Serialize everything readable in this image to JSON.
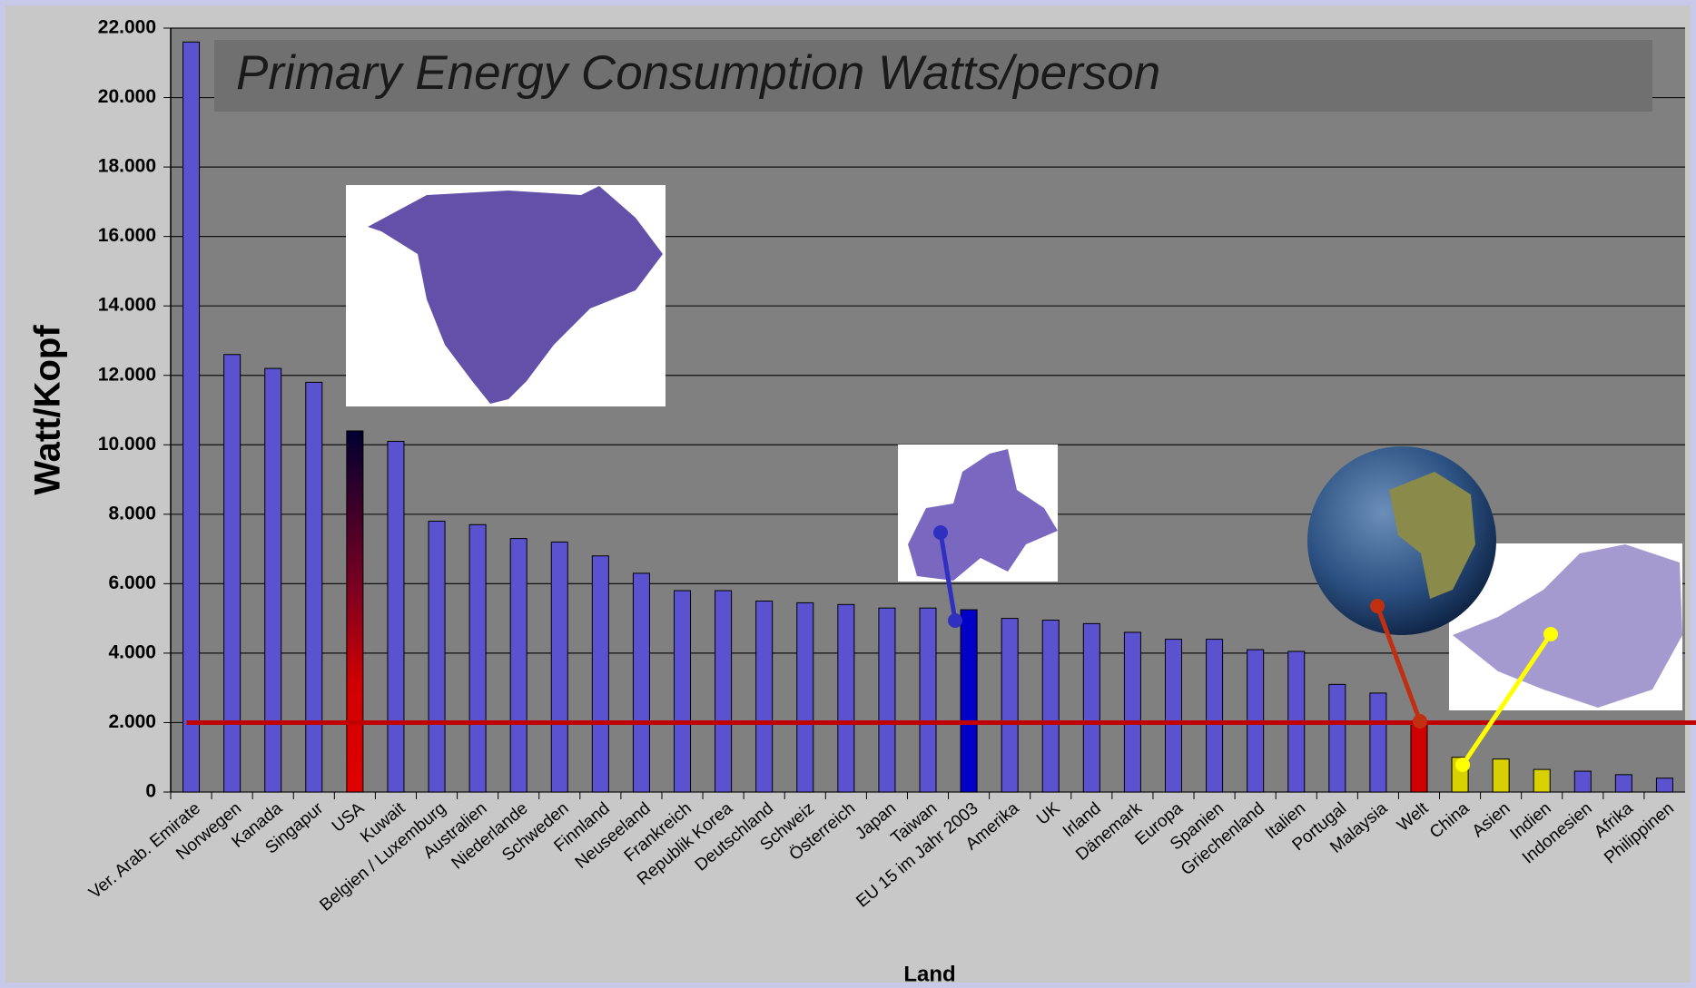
{
  "chart_data": {
    "type": "bar",
    "title": "Primary Energy Consumption Watts/person",
    "y_label": "Watt/Kopf",
    "x_label": "Land",
    "categories": [
      "Ver. Arab. Emirate",
      "Norwegen",
      "Kanada",
      "Singapur",
      "USA",
      "Kuwait",
      "Belgien / Luxemburg",
      "Australien",
      "Niederlande",
      "Schweden",
      "Finnland",
      "Neuseeland",
      "Frankreich",
      "Republik Korea",
      "Deutschland",
      "Schweiz",
      "Österreich",
      "Japan",
      "Taiwan",
      "EU 15 im Jahr 2003",
      "Amerika",
      "UK",
      "Irland",
      "Dänemark",
      "Europa",
      "Spanien",
      "Griechenland",
      "Italien",
      "Portugal",
      "Malaysia",
      "Welt",
      "China",
      "Asien",
      "Indien",
      "Indonesien",
      "Afrika",
      "Philippinen"
    ],
    "values": [
      21600,
      12600,
      12200,
      11800,
      10400,
      10100,
      7800,
      7700,
      7300,
      7200,
      6800,
      6300,
      5800,
      5800,
      5500,
      5450,
      5400,
      5300,
      5300,
      5250,
      5000,
      4950,
      4850,
      4600,
      4400,
      4400,
      4100,
      4050,
      3100,
      2850,
      2000,
      1000,
      950,
      650,
      600,
      500,
      400
    ],
    "colors": [
      "#5b52d0",
      "#5b52d0",
      "#5b52d0",
      "#5b52d0",
      "url(#usa-grad)",
      "#5b52d0",
      "#5b52d0",
      "#5b52d0",
      "#5b52d0",
      "#5b52d0",
      "#5b52d0",
      "#5b52d0",
      "#5b52d0",
      "#5b52d0",
      "#5b52d0",
      "#5b52d0",
      "#5b52d0",
      "#5b52d0",
      "#5b52d0",
      "#0000c8",
      "#5b52d0",
      "#5b52d0",
      "#5b52d0",
      "#5b52d0",
      "#5b52d0",
      "#5b52d0",
      "#5b52d0",
      "#5b52d0",
      "#5b52d0",
      "#5b52d0",
      "#d00000",
      "#d8d000",
      "#d8d000",
      "#d8d000",
      "#5b52d0",
      "#5b52d0",
      "#5b52d0"
    ],
    "reference_line": {
      "value": 2000,
      "color": "#c00000"
    },
    "ylim": [
      0,
      22000
    ],
    "yticks": [
      0,
      {
        "value": 2000,
        "label": "2.000"
      },
      {
        "value": 4000,
        "label": "4.000"
      },
      {
        "value": 6000,
        "label": "6.000"
      },
      {
        "value": 8000,
        "label": "8.000"
      },
      {
        "value": 10000,
        "label": "10.000"
      },
      {
        "value": 12000,
        "label": "12.000"
      },
      {
        "value": 14000,
        "label": "14.000"
      },
      {
        "value": 16000,
        "label": "16.000"
      },
      {
        "value": 18000,
        "label": "18.000"
      },
      {
        "value": 20000,
        "label": "20.000"
      },
      {
        "value": 22000,
        "label": "22.000"
      }
    ],
    "grid": true
  }
}
